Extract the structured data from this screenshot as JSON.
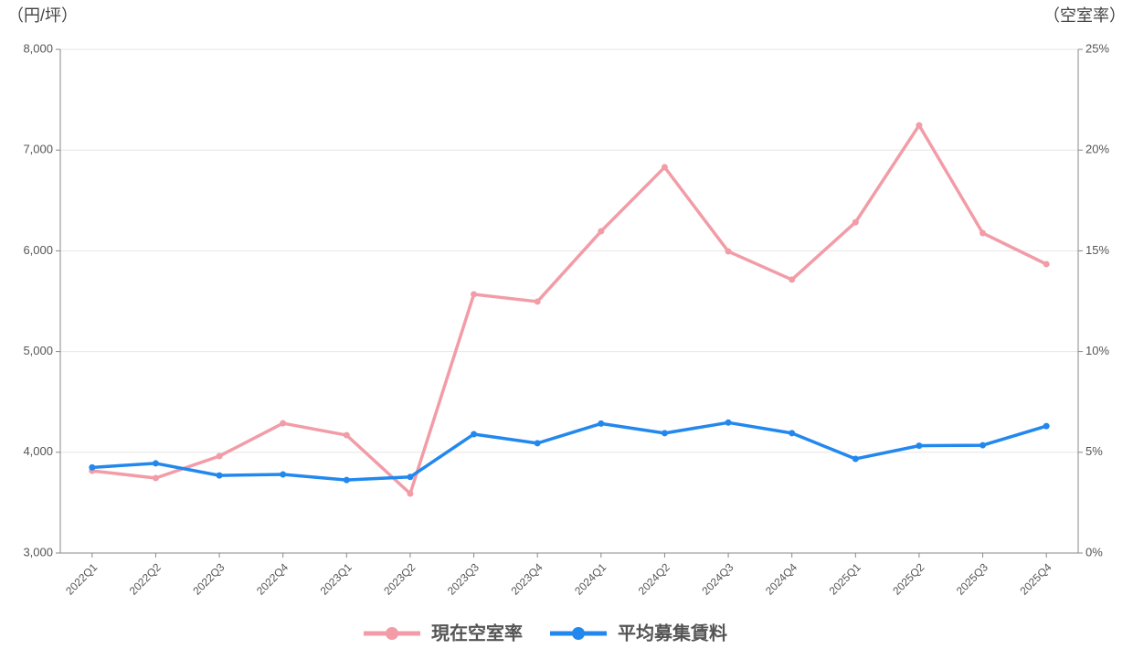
{
  "chart_data": {
    "type": "line",
    "y_axis_title": "（円/坪）",
    "y2_axis_title": "（空室率）",
    "categories": [
      "2022Q1",
      "2022Q2",
      "2022Q3",
      "2022Q4",
      "2023Q1",
      "2023Q2",
      "2023Q3",
      "2023Q4",
      "2024Q1",
      "2024Q2",
      "2024Q3",
      "2024Q4",
      "2025Q1",
      "2025Q2",
      "2025Q3",
      "2025Q4"
    ],
    "series": [
      {
        "name": "現在空室率",
        "color": "#f29ca7",
        "axis": "y2",
        "values": [
          4.08,
          3.72,
          4.81,
          6.44,
          5.85,
          2.95,
          12.84,
          12.48,
          15.97,
          19.15,
          14.97,
          13.57,
          16.42,
          21.23,
          15.88,
          14.34
        ]
      },
      {
        "name": "平均募集賃料",
        "color": "#2288ee",
        "axis": "y",
        "values": [
          3850,
          3890,
          3770,
          3780,
          3725,
          3755,
          4180,
          4090,
          4285,
          4190,
          4295,
          4190,
          3935,
          4065,
          4070,
          4260
        ]
      }
    ],
    "ylim": [
      3000,
      8000
    ],
    "yticks": [
      {
        "value": 3000,
        "label": "3,000"
      },
      {
        "value": 4000,
        "label": "4,000"
      },
      {
        "value": 5000,
        "label": "5,000"
      },
      {
        "value": 6000,
        "label": "6,000"
      },
      {
        "value": 7000,
        "label": "7,000"
      },
      {
        "value": 8000,
        "label": "8,000"
      }
    ],
    "y2lim": [
      0,
      25
    ],
    "y2ticks": [
      {
        "value": 0,
        "label": "0%"
      },
      {
        "value": 5,
        "label": "5%"
      },
      {
        "value": 10,
        "label": "10%"
      },
      {
        "value": 15,
        "label": "15%"
      },
      {
        "value": 20,
        "label": "20%"
      },
      {
        "value": 25,
        "label": "25%"
      }
    ],
    "grid": true
  }
}
